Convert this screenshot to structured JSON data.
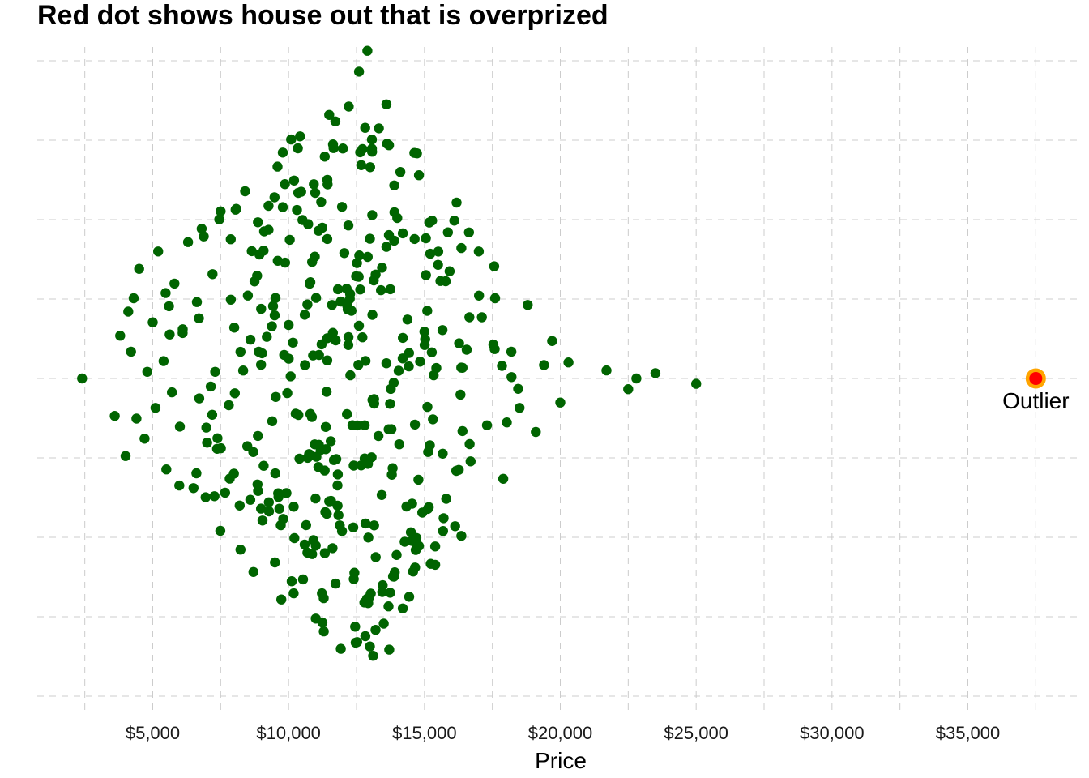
{
  "chart_data": {
    "type": "scatter",
    "title": "Red dot shows house out that is overprized",
    "xlabel": "Price",
    "ylabel": "",
    "x_ticks": [
      5000,
      10000,
      15000,
      20000,
      25000,
      30000,
      35000
    ],
    "x_tick_labels": [
      "$5,000",
      "$10,000",
      "$15,000",
      "$20,000",
      "$25,000",
      "$30,000",
      "$35,000"
    ],
    "xlim": [
      500,
      39000
    ],
    "grid": "dashed, major and minor",
    "colors": {
      "points": "#006400",
      "outlier_fill": "#ff0000",
      "outlier_ring": "#ffa500",
      "grid": "#cccccc"
    },
    "distribution_note": "beeswarm of about 400 prices between $2,400 and $25,000",
    "points": [
      [
        2400,
        0
      ],
      [
        3600,
        -0.28
      ],
      [
        3800,
        0.32
      ],
      [
        4000,
        -0.58
      ],
      [
        4100,
        0.5
      ],
      [
        4200,
        0.2
      ],
      [
        4300,
        0.6
      ],
      [
        4400,
        -0.3
      ],
      [
        4500,
        0.82
      ],
      [
        4700,
        -0.45
      ],
      [
        4800,
        0.05
      ],
      [
        5000,
        0.42
      ],
      [
        5100,
        -0.22
      ],
      [
        5200,
        0.95
      ],
      [
        5400,
        0.13
      ],
      [
        5500,
        -0.68
      ],
      [
        5600,
        0.54
      ],
      [
        5800,
        0.71
      ],
      [
        6000,
        -0.36
      ],
      [
        6100,
        0.34
      ],
      [
        6300,
        1.02
      ],
      [
        6500,
        -0.82
      ],
      [
        6700,
        0.45
      ],
      [
        6800,
        1.12
      ],
      [
        7000,
        -0.48
      ],
      [
        7200,
        0.78
      ],
      [
        7300,
        0.05
      ],
      [
        7500,
        1.25
      ],
      [
        7800,
        -0.2
      ],
      [
        8000,
        0.38
      ],
      [
        8200,
        -0.95
      ],
      [
        8400,
        1.4
      ],
      [
        8500,
        0.62
      ],
      [
        8700,
        -0.55
      ],
      [
        8900,
        0.2
      ],
      [
        9100,
        1.1
      ],
      [
        9400,
        -0.32
      ],
      [
        9600,
        0.88
      ],
      [
        9800,
        -1.05
      ],
      [
        10000,
        0.4
      ],
      [
        10200,
        1.48
      ],
      [
        10400,
        -0.6
      ],
      [
        10600,
        0.1
      ],
      [
        10800,
        0.72
      ],
      [
        11000,
        -1.25
      ],
      [
        11200,
        1.32
      ],
      [
        11400,
        -0.1
      ],
      [
        11600,
        0.55
      ],
      [
        11800,
        -0.8
      ],
      [
        12000,
        1.72
      ],
      [
        12200,
        0.25
      ],
      [
        12400,
        -1.5
      ],
      [
        12600,
        0.92
      ],
      [
        12800,
        -0.35
      ],
      [
        12900,
        2.45
      ],
      [
        13000,
        1.58
      ],
      [
        13200,
        -1.88
      ],
      [
        13400,
        0.66
      ],
      [
        13600,
        2.05
      ],
      [
        13800,
        -0.72
      ],
      [
        14000,
        1.2
      ],
      [
        14200,
        0.15
      ],
      [
        14500,
        -1.15
      ],
      [
        14800,
        1.52
      ],
      [
        15000,
        0.35
      ],
      [
        15200,
        -0.5
      ],
      [
        15500,
        0.85
      ],
      [
        15800,
        -0.9
      ],
      [
        16100,
        1.18
      ],
      [
        16400,
        0.08
      ],
      [
        16700,
        -0.62
      ],
      [
        17000,
        0.95
      ],
      [
        17300,
        -0.35
      ],
      [
        17600,
        0.6
      ],
      [
        17900,
        -0.75
      ],
      [
        18200,
        0.2
      ],
      [
        18500,
        -0.22
      ],
      [
        18800,
        0.55
      ],
      [
        19100,
        -0.4
      ],
      [
        19400,
        0.1
      ],
      [
        19700,
        0.28
      ],
      [
        20000,
        -0.18
      ],
      [
        20300,
        0.12
      ],
      [
        21700,
        0.06
      ],
      [
        22500,
        -0.08
      ],
      [
        22800,
        0.0
      ],
      [
        23500,
        0.04
      ],
      [
        25000,
        -0.04
      ]
    ],
    "outlier": {
      "x": 37500,
      "label": "Outlier"
    }
  }
}
